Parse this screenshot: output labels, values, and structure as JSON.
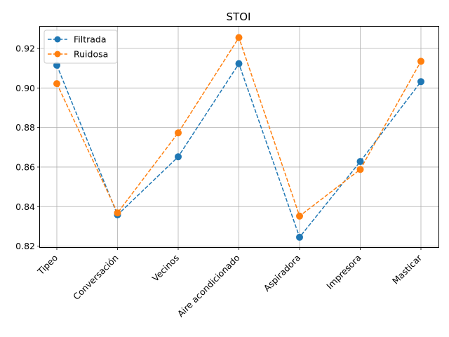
{
  "chart_data": {
    "type": "line",
    "title": "STOI",
    "xlabel": "",
    "ylabel": "",
    "categories": [
      "Tipeo",
      "Conversación",
      "Vecinos",
      "Aire acondicionado",
      "Aspiradora",
      "Impresora",
      "Masticar"
    ],
    "series": [
      {
        "name": "Filtrada",
        "color": "#1f77b4",
        "marker": "circle",
        "linestyle": "dashed",
        "values": [
          0.9115,
          0.8358,
          0.8652,
          0.9123,
          0.8245,
          0.8628,
          0.9032
        ]
      },
      {
        "name": "Ruidosa",
        "color": "#ff7f0e",
        "marker": "circle",
        "linestyle": "dashed",
        "values": [
          0.9022,
          0.8368,
          0.8773,
          0.9255,
          0.8352,
          0.8588,
          0.9135
        ]
      }
    ],
    "ylim": [
      0.8195,
      0.931
    ],
    "yticks": [
      0.82,
      0.84,
      0.86,
      0.88,
      0.9,
      0.92
    ],
    "ytick_labels": [
      "0.82",
      "0.84",
      "0.86",
      "0.88",
      "0.90",
      "0.92"
    ],
    "grid": true,
    "legend_position": "upper left"
  }
}
